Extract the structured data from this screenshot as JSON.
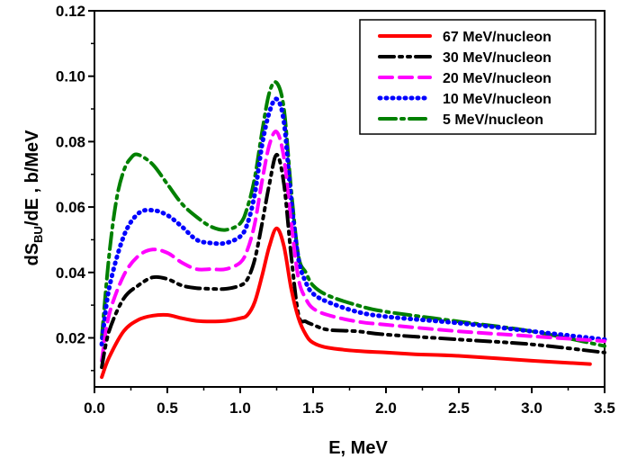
{
  "chart_data": {
    "type": "line",
    "title": "",
    "xlabel": "E, MeV",
    "ylabel": {
      "prefix": "dS",
      "sub": "BU",
      "suffix": "/dE , b/MeV"
    },
    "xlim": [
      0.0,
      3.5
    ],
    "ylim": [
      0.005,
      0.12
    ],
    "xticks": [
      "0.0",
      "0.5",
      "1.0",
      "1.5",
      "2.0",
      "2.5",
      "3.0",
      "3.5"
    ],
    "yticks": [
      "0.02",
      "0.04",
      "0.06",
      "0.08",
      "0.10",
      "0.12"
    ],
    "grid": false,
    "legend_position": "top-right",
    "series": [
      {
        "name": "67 MeV/nucleon",
        "color": "#ff0000",
        "style": "solid",
        "x": [
          0.05,
          0.1,
          0.2,
          0.3,
          0.4,
          0.5,
          0.6,
          0.7,
          0.8,
          0.9,
          1.0,
          1.05,
          1.1,
          1.15,
          1.2,
          1.25,
          1.3,
          1.35,
          1.4,
          1.45,
          1.5,
          1.6,
          1.8,
          2.0,
          2.2,
          2.5,
          3.0,
          3.4
        ],
        "y": [
          0.008,
          0.014,
          0.022,
          0.0255,
          0.0268,
          0.027,
          0.026,
          0.0252,
          0.025,
          0.0252,
          0.026,
          0.027,
          0.031,
          0.039,
          0.048,
          0.0535,
          0.048,
          0.035,
          0.026,
          0.021,
          0.0185,
          0.017,
          0.016,
          0.0155,
          0.015,
          0.0145,
          0.013,
          0.012
        ]
      },
      {
        "name": "30 MeV/nucleon",
        "color": "#000000",
        "style": "dash-dot-dot",
        "x": [
          0.05,
          0.1,
          0.2,
          0.3,
          0.4,
          0.5,
          0.6,
          0.7,
          0.8,
          0.9,
          1.0,
          1.05,
          1.1,
          1.15,
          1.2,
          1.25,
          1.3,
          1.35,
          1.4,
          1.45,
          1.5,
          1.6,
          1.8,
          2.0,
          2.5,
          3.0,
          3.5
        ],
        "y": [
          0.011,
          0.022,
          0.032,
          0.036,
          0.0385,
          0.038,
          0.036,
          0.0352,
          0.035,
          0.035,
          0.036,
          0.038,
          0.044,
          0.055,
          0.067,
          0.076,
          0.067,
          0.045,
          0.027,
          0.025,
          0.024,
          0.0225,
          0.022,
          0.021,
          0.0195,
          0.018,
          0.0155
        ]
      },
      {
        "name": "20 MeV/nucleon",
        "color": "#ff00ff",
        "style": "dashed",
        "x": [
          0.05,
          0.1,
          0.2,
          0.3,
          0.4,
          0.5,
          0.6,
          0.7,
          0.8,
          0.9,
          1.0,
          1.05,
          1.1,
          1.15,
          1.2,
          1.25,
          1.3,
          1.35,
          1.4,
          1.45,
          1.5,
          1.6,
          1.8,
          2.0,
          2.5,
          3.0,
          3.5
        ],
        "y": [
          0.013,
          0.027,
          0.039,
          0.045,
          0.047,
          0.046,
          0.043,
          0.041,
          0.041,
          0.041,
          0.043,
          0.047,
          0.055,
          0.068,
          0.079,
          0.083,
          0.075,
          0.055,
          0.038,
          0.032,
          0.029,
          0.027,
          0.025,
          0.024,
          0.022,
          0.0205,
          0.019
        ]
      },
      {
        "name": "10 MeV/nucleon",
        "color": "#0000ff",
        "style": "dotted",
        "x": [
          0.05,
          0.1,
          0.2,
          0.3,
          0.4,
          0.5,
          0.6,
          0.7,
          0.8,
          0.9,
          1.0,
          1.05,
          1.1,
          1.15,
          1.2,
          1.25,
          1.3,
          1.35,
          1.4,
          1.45,
          1.5,
          1.6,
          1.8,
          2.0,
          2.5,
          3.0,
          3.5
        ],
        "y": [
          0.018,
          0.035,
          0.051,
          0.058,
          0.059,
          0.0575,
          0.054,
          0.05,
          0.049,
          0.049,
          0.051,
          0.055,
          0.064,
          0.079,
          0.089,
          0.093,
          0.086,
          0.062,
          0.044,
          0.037,
          0.0335,
          0.031,
          0.028,
          0.0265,
          0.0245,
          0.022,
          0.0195
        ]
      },
      {
        "name": "5 MeV/nucleon",
        "color": "#008000",
        "style": "dash-dot",
        "x": [
          0.05,
          0.1,
          0.15,
          0.2,
          0.25,
          0.3,
          0.4,
          0.5,
          0.6,
          0.7,
          0.8,
          0.9,
          1.0,
          1.05,
          1.1,
          1.15,
          1.2,
          1.25,
          1.3,
          1.35,
          1.4,
          1.45,
          1.5,
          1.6,
          1.8,
          2.0,
          2.5,
          3.0,
          3.5
        ],
        "y": [
          0.02,
          0.045,
          0.062,
          0.071,
          0.075,
          0.076,
          0.073,
          0.067,
          0.061,
          0.057,
          0.054,
          0.053,
          0.055,
          0.06,
          0.069,
          0.083,
          0.095,
          0.098,
          0.09,
          0.065,
          0.045,
          0.04,
          0.036,
          0.033,
          0.03,
          0.028,
          0.025,
          0.022,
          0.0175
        ]
      }
    ]
  }
}
